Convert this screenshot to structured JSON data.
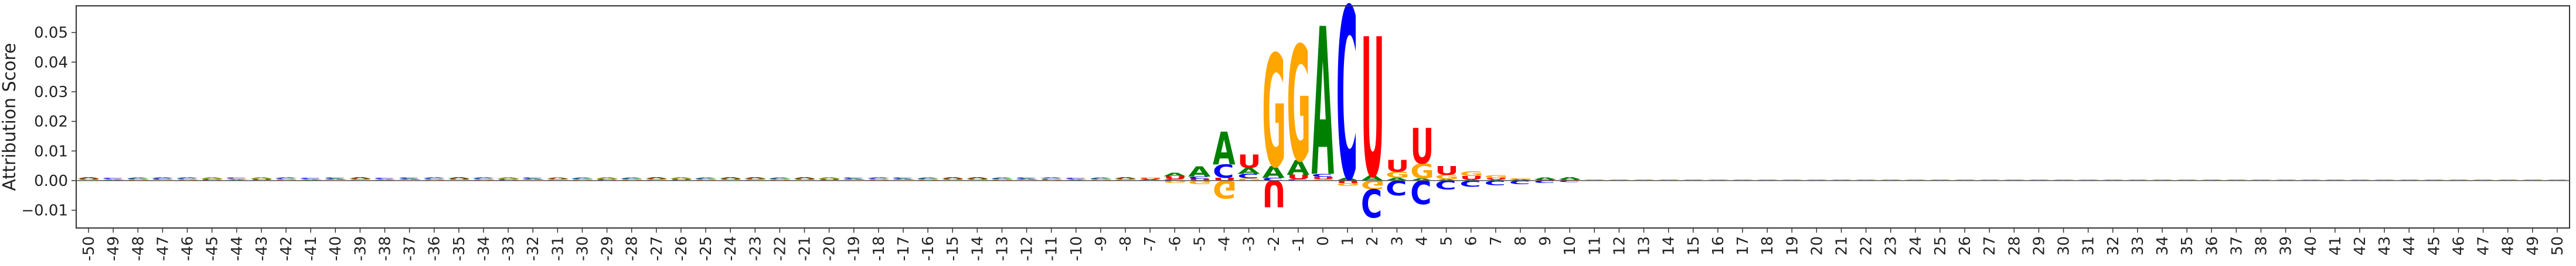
{
  "chart_data": {
    "type": "sequence-logo",
    "ylabel": "Attribution Score",
    "ylim": [
      -0.016,
      0.059
    ],
    "yticks": [
      -0.01,
      0.0,
      0.01,
      0.02,
      0.03,
      0.04,
      0.05
    ],
    "ytick_labels": [
      "−0.01",
      "0.00",
      "0.01",
      "0.02",
      "0.03",
      "0.04",
      "0.05"
    ],
    "xlim": [
      -50.5,
      50.5
    ],
    "positions": [
      -50,
      -49,
      -48,
      -47,
      -46,
      -45,
      -44,
      -43,
      -42,
      -41,
      -40,
      -39,
      -38,
      -37,
      -36,
      -35,
      -34,
      -33,
      -32,
      -31,
      -30,
      -29,
      -28,
      -27,
      -26,
      -25,
      -24,
      -23,
      -22,
      -21,
      -20,
      -19,
      -18,
      -17,
      -16,
      -15,
      -14,
      -13,
      -12,
      -11,
      -10,
      -9,
      -8,
      -7,
      -6,
      -5,
      -4,
      -3,
      -2,
      -1,
      0,
      1,
      2,
      3,
      4,
      5,
      6,
      7,
      8,
      9,
      10,
      11,
      12,
      13,
      14,
      15,
      16,
      17,
      18,
      19,
      20,
      21,
      22,
      23,
      24,
      25,
      26,
      27,
      28,
      29,
      30,
      31,
      32,
      33,
      34,
      35,
      36,
      37,
      38,
      39,
      40,
      41,
      42,
      43,
      44,
      45,
      46,
      47,
      48,
      49,
      50
    ],
    "base_colors": {
      "A": "#008000",
      "C": "#0000ff",
      "G": "#ffa500",
      "U": "#ff0000"
    },
    "bases": [
      "A",
      "C",
      "G",
      "U"
    ],
    "grid": false,
    "logo": [
      {
        "pos": -7,
        "A": 0.0003,
        "C": 0.0002,
        "G": 0.0004,
        "U": 0.0003
      },
      {
        "pos": -6,
        "A": 0.0012,
        "C": 0.0005,
        "G": -0.0008,
        "U": 0.001
      },
      {
        "pos": -5,
        "A": 0.0035,
        "C": 0.0008,
        "G": -0.0012,
        "U": 0.0006
      },
      {
        "pos": -4,
        "A": 0.011,
        "C": 0.0045,
        "G": -0.006,
        "U": 0.001
      },
      {
        "pos": -3,
        "A": 0.002,
        "C": 0.0015,
        "G": 0.0008,
        "U": 0.0045
      },
      {
        "pos": -2,
        "A": 0.004,
        "C": 0.001,
        "G": 0.038,
        "U": -0.009
      },
      {
        "pos": -1,
        "A": 0.005,
        "C": 0.0005,
        "G": 0.039,
        "U": 0.0015
      },
      {
        "pos": 0,
        "A": 0.05,
        "C": 0.001,
        "G": 0.0005,
        "U": 0.0008
      },
      {
        "pos": 1,
        "A": 0.001,
        "C": 0.058,
        "G": -0.001,
        "U": -0.0008
      },
      {
        "pos": 2,
        "A": 0.0018,
        "C": -0.0095,
        "G": -0.003,
        "U": 0.047
      },
      {
        "pos": 3,
        "A": 0.001,
        "C": -0.005,
        "G": 0.002,
        "U": 0.004
      },
      {
        "pos": 4,
        "A": 0.0008,
        "C": -0.008,
        "G": 0.005,
        "U": 0.012
      },
      {
        "pos": 5,
        "A": 0.0005,
        "C": -0.003,
        "G": 0.0015,
        "U": 0.003
      },
      {
        "pos": 6,
        "A": 0.0004,
        "C": -0.002,
        "G": 0.0015,
        "U": 0.0012
      },
      {
        "pos": 7,
        "A": 0.0004,
        "C": -0.0015,
        "G": 0.001,
        "U": 0.0005
      },
      {
        "pos": 8,
        "A": 0.0003,
        "C": -0.0012,
        "G": 0.0004,
        "U": 0.0002
      },
      {
        "pos": 9,
        "A": 0.0006,
        "C": -0.0008,
        "G": 0.0002,
        "U": 0.0002
      },
      {
        "pos": 10,
        "A": 0.0008,
        "C": -0.0005,
        "G": 0.0002,
        "U": 0.0002
      }
    ],
    "baseline_noise": 0.0005
  }
}
